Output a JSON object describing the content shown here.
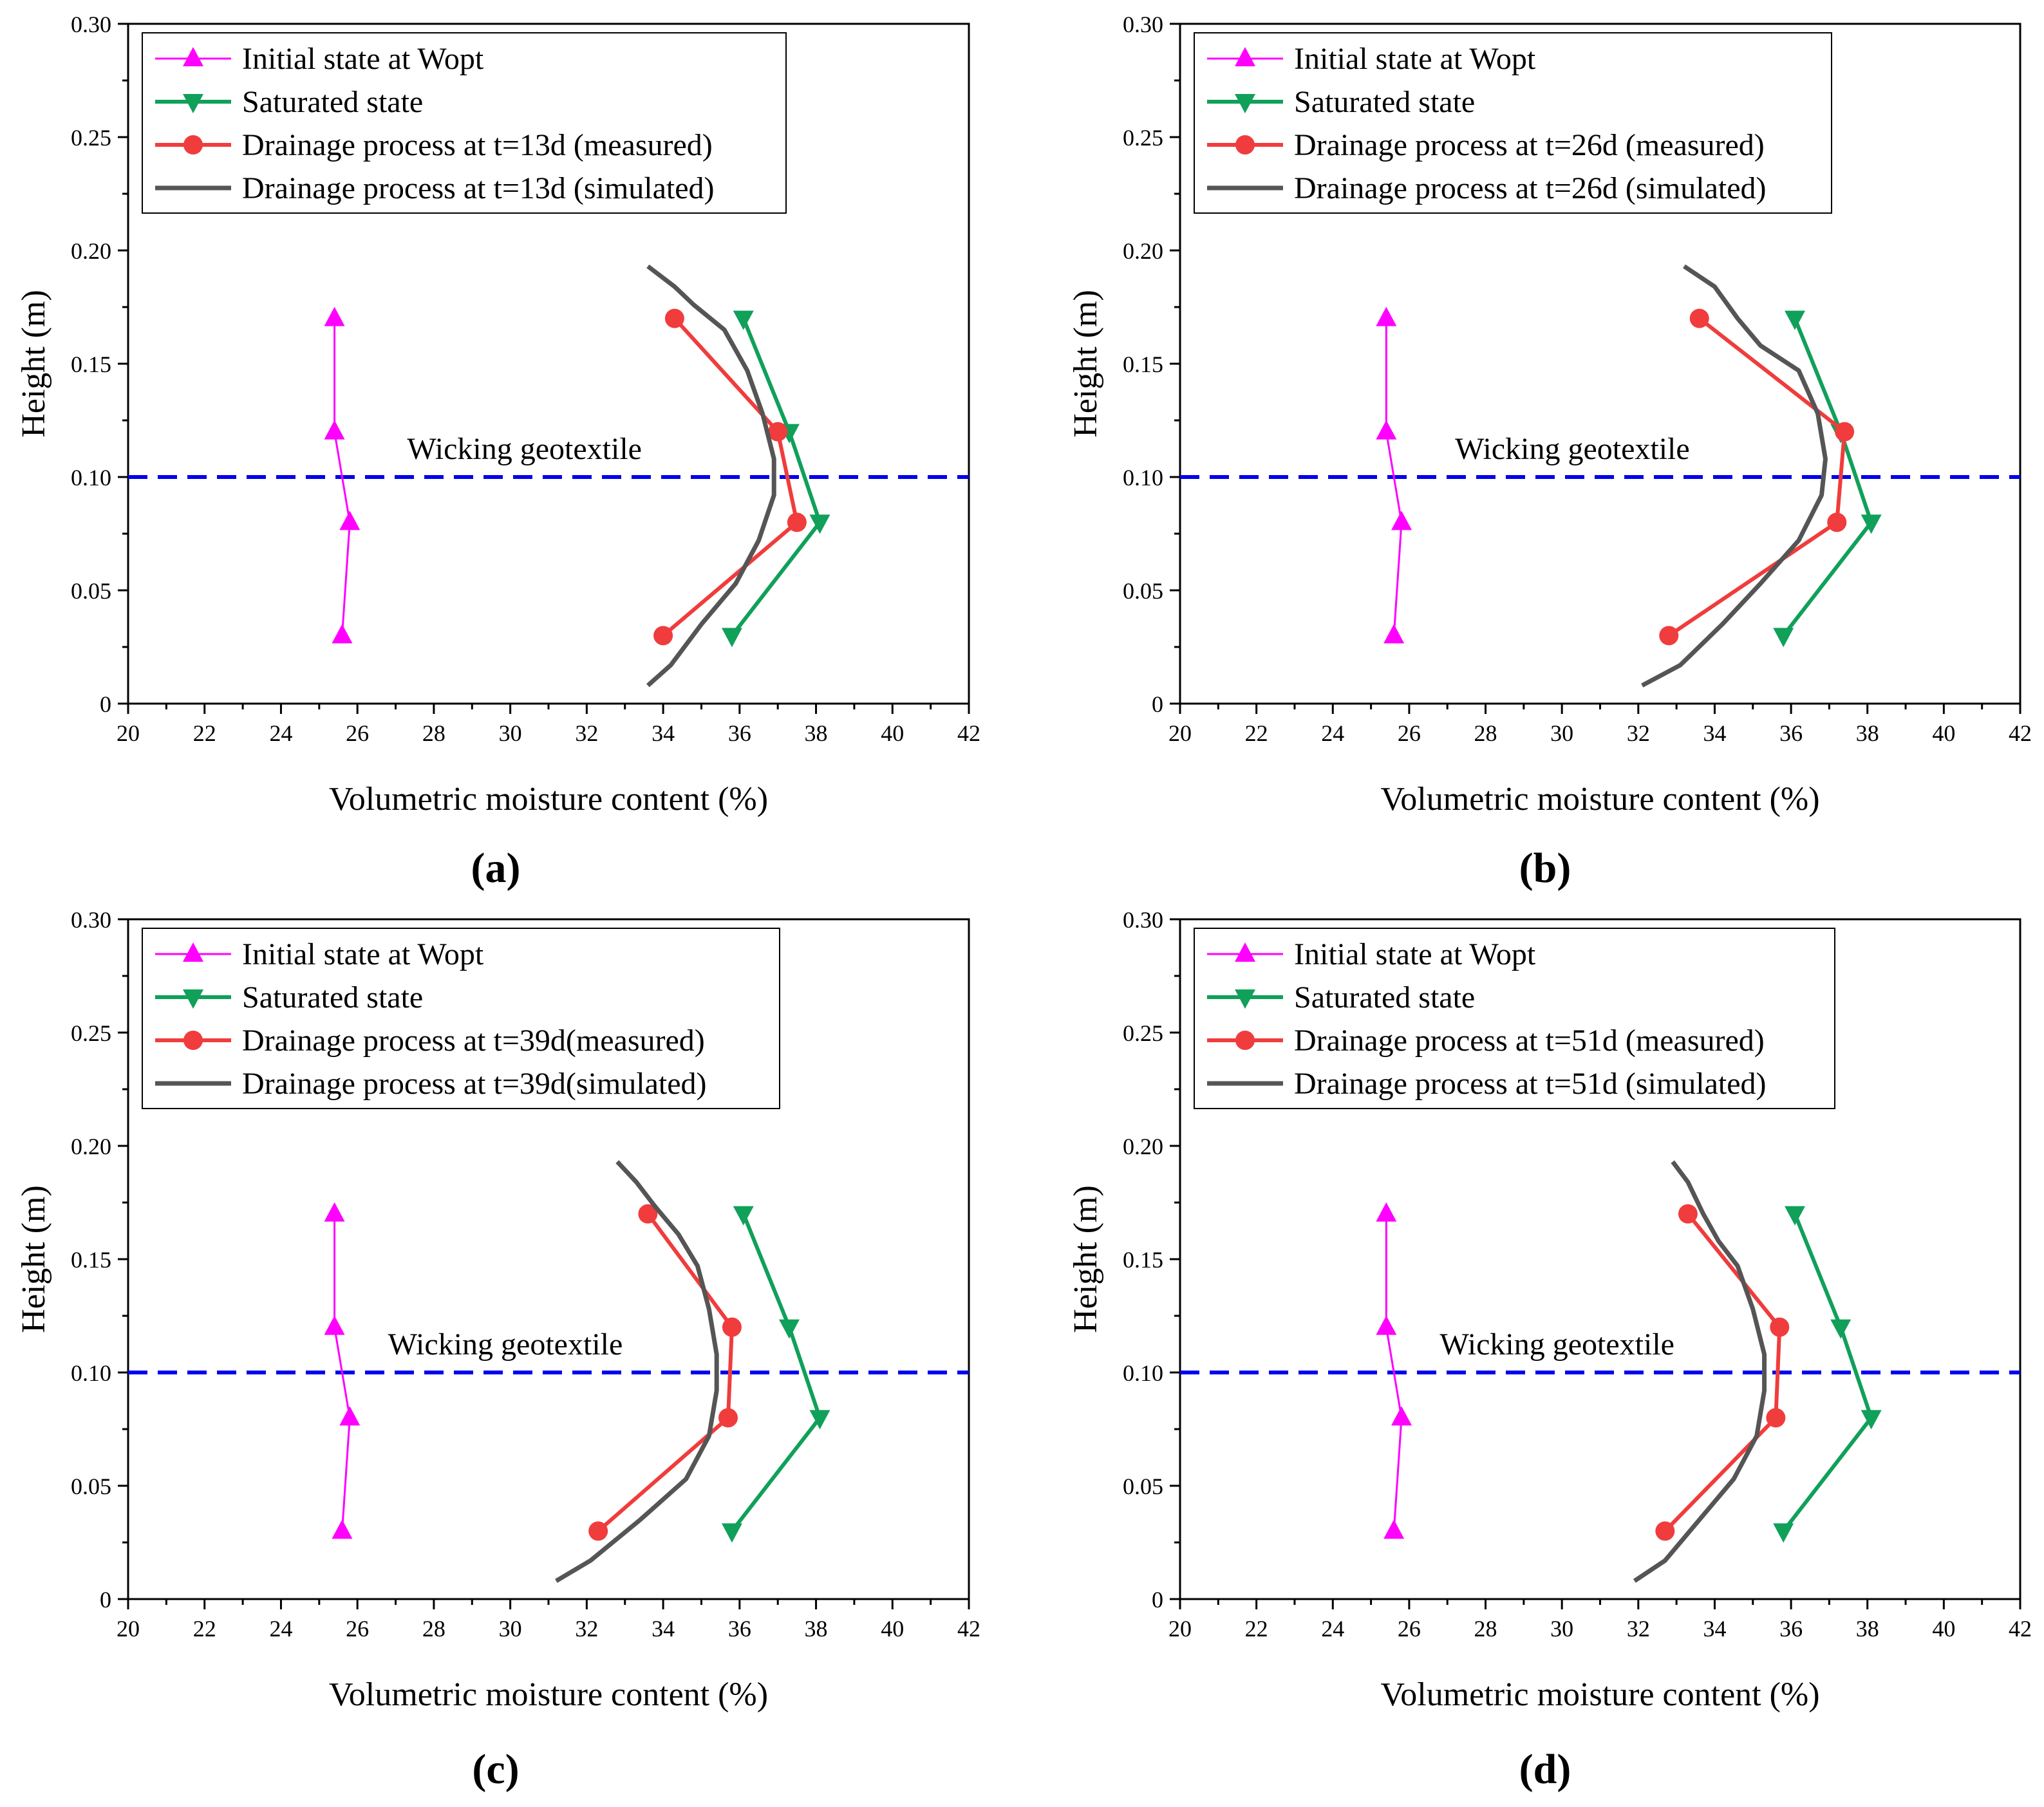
{
  "figure": {
    "panel_labels": [
      "(a)",
      "(b)",
      "(c)",
      "(d)"
    ]
  },
  "colors": {
    "initial": "#ff00ff",
    "saturated": "#10a05a",
    "measured": "#f03c3c",
    "simulated": "#555555",
    "geotextile": "#0000ee"
  },
  "chart_data": [
    {
      "type": "line",
      "panel": "(a)",
      "xlabel": "Volumetric moisture content (%)",
      "ylabel": "Height (m)",
      "xlim": [
        20,
        42
      ],
      "ylim": [
        0,
        0.3
      ],
      "xticks": [
        "20",
        "22",
        "24",
        "26",
        "28",
        "30",
        "32",
        "34",
        "36",
        "38",
        "40",
        "42"
      ],
      "yticks": [
        "0",
        "0.05",
        "0.10",
        "0.15",
        "0.20",
        "0.25",
        "0.30"
      ],
      "legend_position": "top-left",
      "annotation": {
        "text": "Wicking geotextile",
        "y": 0.1
      },
      "series": [
        {
          "name": "Initial state at Wopt",
          "marker": "triangle-up",
          "color": "#ff00ff",
          "x": [
            25.6,
            25.8,
            25.4,
            25.4
          ],
          "y": [
            0.03,
            0.08,
            0.12,
            0.17
          ]
        },
        {
          "name": "Saturated state",
          "marker": "triangle-down",
          "color": "#10a05a",
          "x": [
            35.8,
            38.1,
            37.3,
            36.1
          ],
          "y": [
            0.03,
            0.08,
            0.12,
            0.17
          ]
        },
        {
          "name": "Drainage process at t=13d (measured)",
          "marker": "circle",
          "color": "#f03c3c",
          "x": [
            34.0,
            37.5,
            37.0,
            34.3
          ],
          "y": [
            0.03,
            0.08,
            0.12,
            0.17
          ]
        },
        {
          "name": "Drainage process at t=13d (simulated)",
          "marker": "none",
          "color": "#555555",
          "x": [
            33.6,
            34.2,
            35.0,
            35.9,
            36.5,
            36.9,
            36.9,
            36.6,
            36.2,
            35.6,
            34.8,
            34.3,
            33.6
          ],
          "y": [
            0.008,
            0.017,
            0.035,
            0.053,
            0.072,
            0.092,
            0.108,
            0.128,
            0.147,
            0.165,
            0.176,
            0.184,
            0.193
          ]
        }
      ]
    },
    {
      "type": "line",
      "panel": "(b)",
      "xlabel": "Volumetric moisture content (%)",
      "ylabel": "Height (m)",
      "xlim": [
        20,
        42
      ],
      "ylim": [
        0,
        0.3
      ],
      "xticks": [
        "20",
        "22",
        "24",
        "26",
        "28",
        "30",
        "32",
        "34",
        "36",
        "38",
        "40",
        "42"
      ],
      "yticks": [
        "0",
        "0.05",
        "0.10",
        "0.15",
        "0.20",
        "0.25",
        "0.30"
      ],
      "legend_position": "top-left",
      "annotation": {
        "text": "Wicking geotextile",
        "y": 0.1
      },
      "series": [
        {
          "name": "Initial state at Wopt",
          "marker": "triangle-up",
          "color": "#ff00ff",
          "x": [
            25.6,
            25.8,
            25.4,
            25.4
          ],
          "y": [
            0.03,
            0.08,
            0.12,
            0.17
          ]
        },
        {
          "name": "Saturated state",
          "marker": "triangle-down",
          "color": "#10a05a",
          "x": [
            35.8,
            38.1,
            37.3,
            36.1
          ],
          "y": [
            0.03,
            0.08,
            0.12,
            0.17
          ]
        },
        {
          "name": "Drainage process at t=26d (measured)",
          "marker": "circle",
          "color": "#f03c3c",
          "x": [
            32.8,
            37.2,
            37.4,
            33.6
          ],
          "y": [
            0.03,
            0.08,
            0.12,
            0.17
          ]
        },
        {
          "name": "Drainage process at t=26d (simulated)",
          "marker": "none",
          "color": "#555555",
          "x": [
            32.1,
            33.1,
            34.2,
            35.2,
            36.2,
            36.8,
            36.9,
            36.7,
            36.2,
            35.2,
            34.6,
            34.0,
            33.2
          ],
          "y": [
            0.008,
            0.017,
            0.035,
            0.053,
            0.072,
            0.092,
            0.108,
            0.128,
            0.147,
            0.158,
            0.17,
            0.184,
            0.193
          ]
        }
      ]
    },
    {
      "type": "line",
      "panel": "(c)",
      "xlabel": "Volumetric moisture content (%)",
      "ylabel": "Height (m)",
      "xlim": [
        20,
        42
      ],
      "ylim": [
        0,
        0.3
      ],
      "xticks": [
        "20",
        "22",
        "24",
        "26",
        "28",
        "30",
        "32",
        "34",
        "36",
        "38",
        "40",
        "42"
      ],
      "yticks": [
        "0",
        "0.05",
        "0.10",
        "0.15",
        "0.20",
        "0.25",
        "0.30"
      ],
      "legend_position": "top-left",
      "annotation": {
        "text": "Wicking geotextile",
        "y": 0.1
      },
      "series": [
        {
          "name": "Initial state at Wopt",
          "marker": "triangle-up",
          "color": "#ff00ff",
          "x": [
            25.6,
            25.8,
            25.4,
            25.4
          ],
          "y": [
            0.03,
            0.08,
            0.12,
            0.17
          ]
        },
        {
          "name": "Saturated state",
          "marker": "triangle-down",
          "color": "#10a05a",
          "x": [
            35.8,
            38.1,
            37.3,
            36.1
          ],
          "y": [
            0.03,
            0.08,
            0.12,
            0.17
          ]
        },
        {
          "name": "Drainage process at t=39d(measured)",
          "marker": "circle",
          "color": "#f03c3c",
          "x": [
            32.3,
            35.7,
            35.8,
            33.6
          ],
          "y": [
            0.03,
            0.08,
            0.12,
            0.17
          ]
        },
        {
          "name": "Drainage process at t=39d(simulated)",
          "marker": "none",
          "color": "#555555",
          "x": [
            31.2,
            32.1,
            33.4,
            34.6,
            35.2,
            35.4,
            35.4,
            35.2,
            34.9,
            34.4,
            33.8,
            33.3,
            32.8
          ],
          "y": [
            0.008,
            0.017,
            0.035,
            0.053,
            0.072,
            0.092,
            0.108,
            0.128,
            0.147,
            0.161,
            0.173,
            0.184,
            0.193
          ]
        }
      ]
    },
    {
      "type": "line",
      "panel": "(d)",
      "xlabel": "Volumetric moisture content (%)",
      "ylabel": "Height (m)",
      "xlim": [
        20,
        42
      ],
      "ylim": [
        0,
        0.3
      ],
      "xticks": [
        "20",
        "22",
        "24",
        "26",
        "28",
        "30",
        "32",
        "34",
        "36",
        "38",
        "40",
        "42"
      ],
      "yticks": [
        "0",
        "0.05",
        "0.10",
        "0.15",
        "0.20",
        "0.25",
        "0.30"
      ],
      "legend_position": "top-left",
      "annotation": {
        "text": "Wicking geotextile",
        "y": 0.1
      },
      "series": [
        {
          "name": "Initial state at Wopt",
          "marker": "triangle-up",
          "color": "#ff00ff",
          "x": [
            25.6,
            25.8,
            25.4,
            25.4
          ],
          "y": [
            0.03,
            0.08,
            0.12,
            0.17
          ]
        },
        {
          "name": "Saturated state",
          "marker": "triangle-down",
          "color": "#10a05a",
          "x": [
            35.8,
            38.1,
            37.3,
            36.1
          ],
          "y": [
            0.03,
            0.08,
            0.12,
            0.17
          ]
        },
        {
          "name": "Drainage process at t=51d (measured)",
          "marker": "circle",
          "color": "#f03c3c",
          "x": [
            32.7,
            35.6,
            35.7,
            33.3
          ],
          "y": [
            0.03,
            0.08,
            0.12,
            0.17
          ]
        },
        {
          "name": "Drainage process at t=51d (simulated)",
          "marker": "none",
          "color": "#555555",
          "x": [
            31.9,
            32.7,
            33.6,
            34.5,
            35.1,
            35.3,
            35.3,
            35.0,
            34.6,
            34.1,
            33.7,
            33.3,
            32.9
          ],
          "y": [
            0.008,
            0.017,
            0.035,
            0.053,
            0.072,
            0.092,
            0.108,
            0.128,
            0.147,
            0.158,
            0.17,
            0.184,
            0.193
          ]
        }
      ]
    }
  ]
}
